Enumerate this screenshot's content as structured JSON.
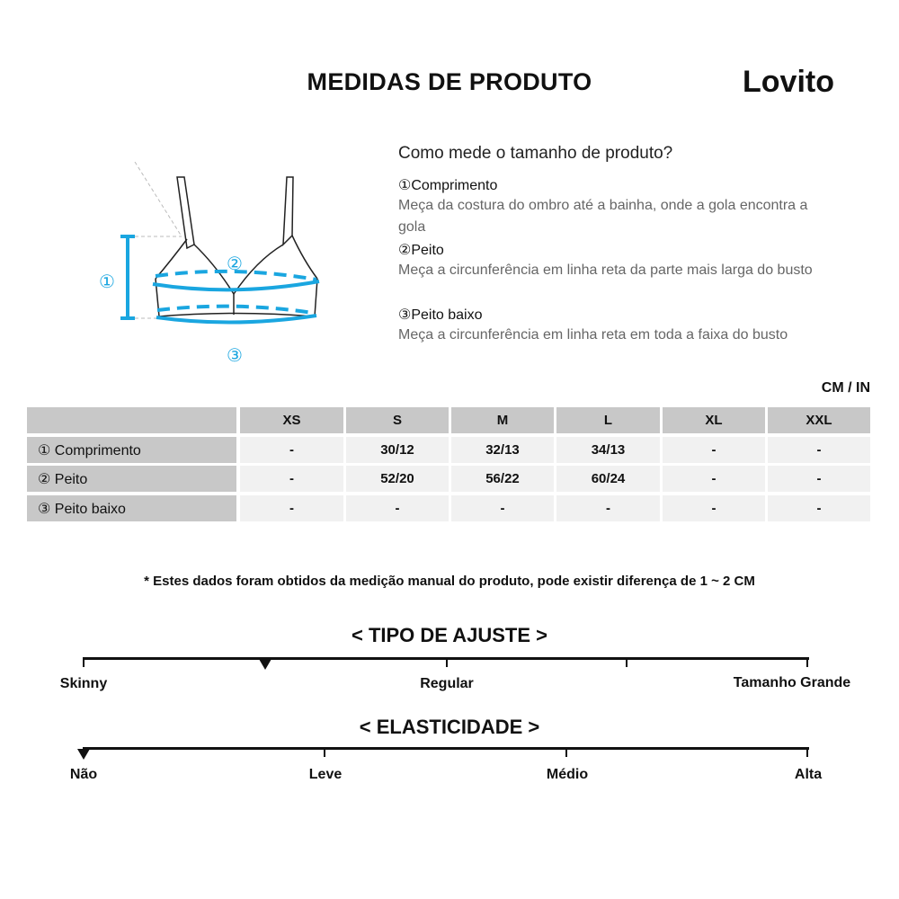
{
  "header": {
    "title": "MEDIDAS DE PRODUTO",
    "brand": "Lovito"
  },
  "diagram": {
    "n1": "①",
    "n2": "②",
    "n3": "③",
    "accent": "#1aa6e0"
  },
  "guide": {
    "question": "Como mede o tamanho de produto?",
    "items": [
      {
        "name": "①Comprimento",
        "desc": "Meça da costura do ombro até a bainha, onde a gola encontra a gola"
      },
      {
        "name": "②Peito",
        "desc": "Meça a circunferência em linha reta da parte mais larga do busto"
      },
      {
        "name": "③Peito baixo",
        "desc": "Meça a circunferência em linha reta em toda a faixa do busto"
      }
    ]
  },
  "table": {
    "unit": "CM / IN",
    "sizes": [
      "XS",
      "S",
      "M",
      "L",
      "XL",
      "XXL"
    ],
    "rows": [
      {
        "label": "① Comprimento",
        "values": [
          "-",
          "30/12",
          "32/13",
          "34/13",
          "-",
          "-"
        ]
      },
      {
        "label": "② Peito",
        "values": [
          "-",
          "52/20",
          "56/22",
          "60/24",
          "-",
          "-"
        ]
      },
      {
        "label": "③ Peito baixo",
        "values": [
          "-",
          "-",
          "-",
          "-",
          "-",
          "-"
        ]
      }
    ]
  },
  "note": "* Estes dados foram obtidos da medição manual do produto, pode existir diferença de 1 ~ 2 CM",
  "fit": {
    "title": "< TIPO DE AJUSTE >",
    "labels": [
      "Skinny",
      "Regular",
      "Tamanho Grande"
    ],
    "level": 0.25
  },
  "elasticity": {
    "title": "< ELASTICIDADE >",
    "labels": [
      "Não",
      "Leve",
      "Médio",
      "Alta"
    ],
    "level": 0
  }
}
